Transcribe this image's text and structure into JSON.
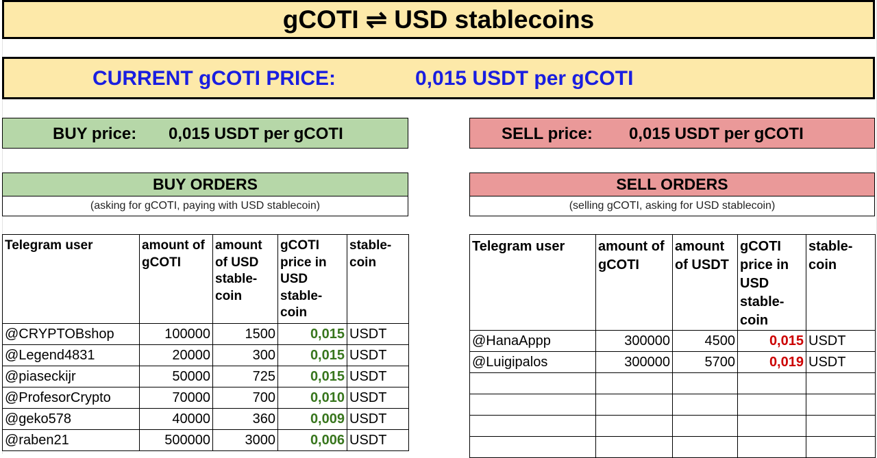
{
  "title": "gCOTI ⇌ USD stablecoins",
  "current_price": {
    "label": "CURRENT gCOTI PRICE:",
    "value": "0,015 USDT per gCOTI"
  },
  "buy_price": {
    "label": "BUY price:",
    "value": "0,015 USDT per gCOTI"
  },
  "sell_price": {
    "label": "SELL price:",
    "value": "0,015 USDT per gCOTI"
  },
  "buy_orders": {
    "title": "BUY ORDERS",
    "subtitle": "(asking for gCOTI, paying with USD stablecoin)",
    "columns": [
      "Telegram user",
      "amount of gCOTI",
      "amount of USD stable-coin",
      "gCOTI price in USD stable-coin",
      "stable-coin"
    ],
    "rows": [
      [
        "@CRYPTOBshop",
        "100000",
        "1500",
        "0,015",
        "USDT"
      ],
      [
        "@Legend4831",
        "20000",
        "300",
        "0,015",
        "USDT"
      ],
      [
        "@piaseckijr",
        "50000",
        "725",
        "0,015",
        "USDT"
      ],
      [
        "@ProfesorCrypto",
        "70000",
        "700",
        "0,010",
        "USDT"
      ],
      [
        "@geko578",
        "40000",
        "360",
        "0,009",
        "USDT"
      ],
      [
        "@raben21",
        "500000",
        "3000",
        "0,006",
        "USDT"
      ]
    ]
  },
  "sell_orders": {
    "title": "SELL ORDERS",
    "subtitle": "(selling gCOTI, asking for USD stablecoin)",
    "columns": [
      "Telegram user",
      "amount of gCOTI",
      "amount of USDT",
      "gCOTI price in USD stable-coin",
      "stable-coin"
    ],
    "rows": [
      [
        "@HanaAppp",
        "300000",
        "4500",
        "0,015",
        "USDT"
      ],
      [
        "@Luigipalos",
        "300000",
        "5700",
        "0,019",
        "USDT"
      ],
      [
        "",
        "",
        "",
        "",
        ""
      ],
      [
        "",
        "",
        "",
        "",
        ""
      ],
      [
        "",
        "",
        "",
        "",
        ""
      ],
      [
        "",
        "",
        "",
        "",
        ""
      ]
    ]
  },
  "colors": {
    "title_bg": "#fde9a9",
    "buy_bg": "#b6d7a8",
    "sell_bg": "#ea9999",
    "current_price_text": "#1a1ee0",
    "buy_price_text": "#38761d",
    "sell_price_text": "#cc0000"
  }
}
